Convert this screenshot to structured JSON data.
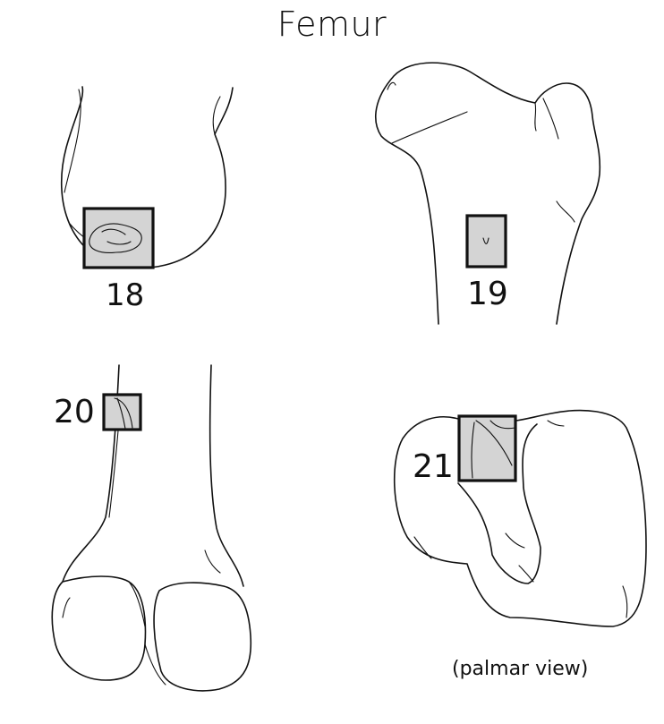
{
  "title": "Femur",
  "regions": [
    {
      "id": "18",
      "label": "18"
    },
    {
      "id": "19",
      "label": "19"
    },
    {
      "id": "20",
      "label": "20"
    },
    {
      "id": "21",
      "label": "21"
    }
  ],
  "view_note": "(palmar view)",
  "colors": {
    "line": "#111111",
    "highlight": "#d4d4d4",
    "background": "#ffffff"
  }
}
